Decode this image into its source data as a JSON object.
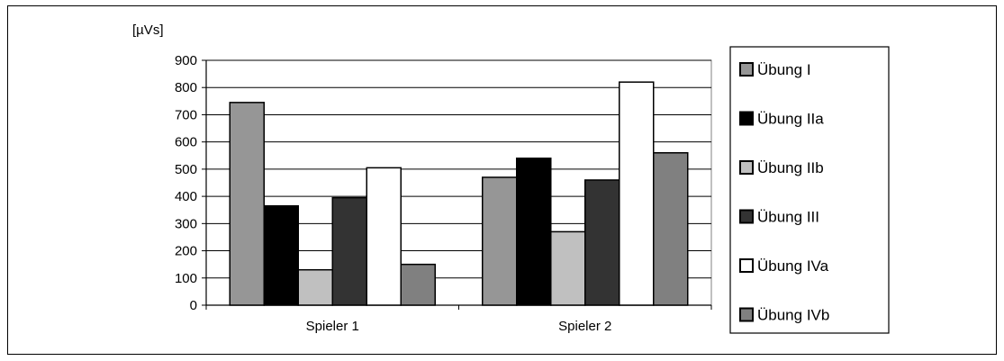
{
  "chart_data": {
    "type": "bar",
    "ylabel": "[µVs]",
    "ylim": [
      0,
      900
    ],
    "yticks": [
      0,
      100,
      200,
      300,
      400,
      500,
      600,
      700,
      800,
      900
    ],
    "grid": true,
    "legend_position": "right",
    "categories": [
      "Spieler 1",
      "Spieler 2"
    ],
    "series": [
      {
        "name": "Übung I",
        "values": [
          745,
          470
        ],
        "color": "#969696"
      },
      {
        "name": "Übung IIa",
        "values": [
          365,
          540
        ],
        "color": "#000000"
      },
      {
        "name": "Übung IIb",
        "values": [
          130,
          270
        ],
        "color": "#c0c0c0"
      },
      {
        "name": "Übung III",
        "values": [
          395,
          460
        ],
        "color": "#333333"
      },
      {
        "name": "Übung IVa",
        "values": [
          505,
          820
        ],
        "color": "#ffffff"
      },
      {
        "name": "Übung IVb",
        "values": [
          150,
          560
        ],
        "color": "#808080"
      }
    ]
  }
}
